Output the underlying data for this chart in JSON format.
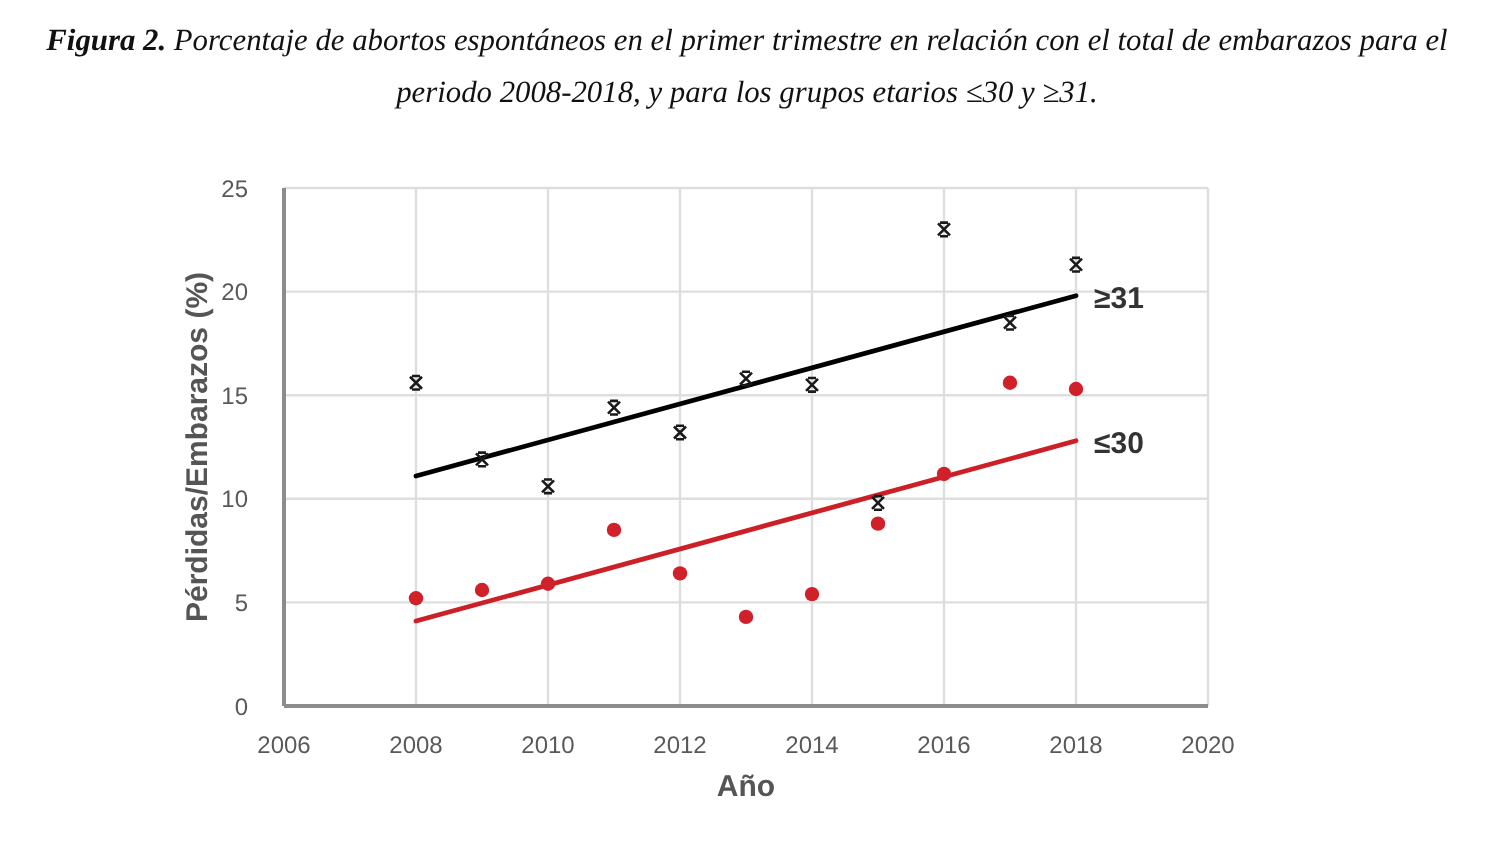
{
  "chart_data": {
    "type": "scatter",
    "title": "Figura 2.",
    "subtitle": "Porcentaje de abortos espontáneos en el primer trimestre en relación con el total de embarazos para el periodo 2008-2018, y para los grupos etarios ≤30 y ≥31.",
    "xlabel": "Año",
    "ylabel": "Pérdidas/Embarazos (%)",
    "xlim": [
      2006,
      2020
    ],
    "xticks": [
      2006,
      2008,
      2010,
      2012,
      2014,
      2016,
      2018,
      2020
    ],
    "ylim": [
      0,
      25
    ],
    "yticks": [
      0,
      5,
      10,
      15,
      20,
      25
    ],
    "grid": true,
    "series": [
      {
        "color": "#1a1a1a",
        "marker": "cross",
        "x": [
          2008,
          2009,
          2010,
          2011,
          2012,
          2013,
          2014,
          2015,
          2016,
          2017,
          2018
        ],
        "values": [
          15.6,
          11.9,
          10.6,
          14.4,
          13.2,
          15.8,
          15.5,
          9.8,
          23.0,
          18.5,
          21.3
        ]
      },
      {
        "type": "line",
        "name": "≥31",
        "color": "#000000",
        "marker": "none",
        "x": [
          2008,
          2018
        ],
        "values": [
          11.1,
          19.8
        ]
      },
      {
        "color": "#d0202a",
        "marker": "circle",
        "x": [
          2008,
          2009,
          2010,
          2011,
          2012,
          2013,
          2014,
          2015,
          2016,
          2017,
          2018
        ],
        "values": [
          5.2,
          5.6,
          5.9,
          8.5,
          6.4,
          4.3,
          5.4,
          8.8,
          11.2,
          15.6,
          15.3
        ]
      },
      {
        "type": "line",
        "name": "≤30",
        "color": "#cc1f26",
        "marker": "none",
        "x": [
          2008,
          2018
        ],
        "values": [
          4.1,
          12.8
        ]
      }
    ]
  }
}
